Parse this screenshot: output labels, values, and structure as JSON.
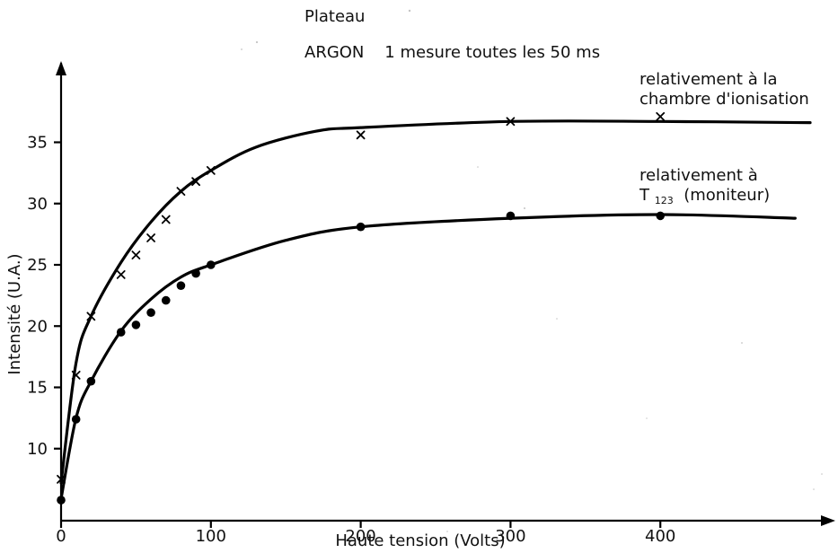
{
  "title_lines": {
    "line1": "Plateau",
    "line2": "ARGON    1 mesure toutes les 50 ms"
  },
  "annotations": {
    "upper_line1": "relativement à la",
    "upper_line2": "chambre d'ionisation",
    "lower_line1": "relativement à",
    "lower_line2_main": "T",
    "lower_line2_sub": "123",
    "lower_line2_tail": " (moniteur)"
  },
  "chart_data": {
    "type": "scatter",
    "title": "Plateau",
    "subtitle": "ARGON    1 mesure toutes les 50 ms",
    "xlabel": "Haute tension (Volts)",
    "ylabel": "Intensité (U.A.)",
    "xlim": [
      0,
      500
    ],
    "ylim": [
      5,
      40
    ],
    "x_ticks": [
      0,
      100,
      200,
      300,
      400
    ],
    "y_ticks": [
      10,
      15,
      20,
      25,
      30,
      35
    ],
    "grid": false,
    "series": [
      {
        "name": "relativement à la chambre d'ionisation",
        "marker": "x",
        "points": [
          [
            0,
            7.5
          ],
          [
            10,
            16.0
          ],
          [
            20,
            20.8
          ],
          [
            40,
            24.2
          ],
          [
            50,
            25.8
          ],
          [
            60,
            27.2
          ],
          [
            70,
            28.7
          ],
          [
            80,
            31.0
          ],
          [
            90,
            31.8
          ],
          [
            100,
            32.7
          ],
          [
            200,
            35.6
          ],
          [
            300,
            36.7
          ],
          [
            400,
            37.1
          ]
        ],
        "fit": [
          [
            0,
            7.2
          ],
          [
            10,
            17.0
          ],
          [
            20,
            20.8
          ],
          [
            40,
            25.2
          ],
          [
            60,
            28.5
          ],
          [
            80,
            31.0
          ],
          [
            100,
            32.7
          ],
          [
            130,
            34.6
          ],
          [
            170,
            35.9
          ],
          [
            200,
            36.2
          ],
          [
            300,
            36.7
          ],
          [
            400,
            36.7
          ],
          [
            500,
            36.6
          ]
        ]
      },
      {
        "name": "relativement à T123 (moniteur)",
        "marker": "o",
        "points": [
          [
            0,
            5.8
          ],
          [
            10,
            12.4
          ],
          [
            20,
            15.5
          ],
          [
            40,
            19.5
          ],
          [
            50,
            20.1
          ],
          [
            60,
            21.1
          ],
          [
            70,
            22.1
          ],
          [
            80,
            23.3
          ],
          [
            90,
            24.3
          ],
          [
            100,
            25.0
          ],
          [
            200,
            28.1
          ],
          [
            300,
            29.0
          ],
          [
            400,
            29.0
          ]
        ],
        "fit": [
          [
            0,
            5.9
          ],
          [
            10,
            12.5
          ],
          [
            20,
            15.5
          ],
          [
            40,
            19.6
          ],
          [
            60,
            22.2
          ],
          [
            80,
            24.0
          ],
          [
            100,
            25.0
          ],
          [
            150,
            27.0
          ],
          [
            200,
            28.1
          ],
          [
            300,
            28.8
          ],
          [
            400,
            29.1
          ],
          [
            490,
            28.8
          ]
        ]
      }
    ]
  }
}
